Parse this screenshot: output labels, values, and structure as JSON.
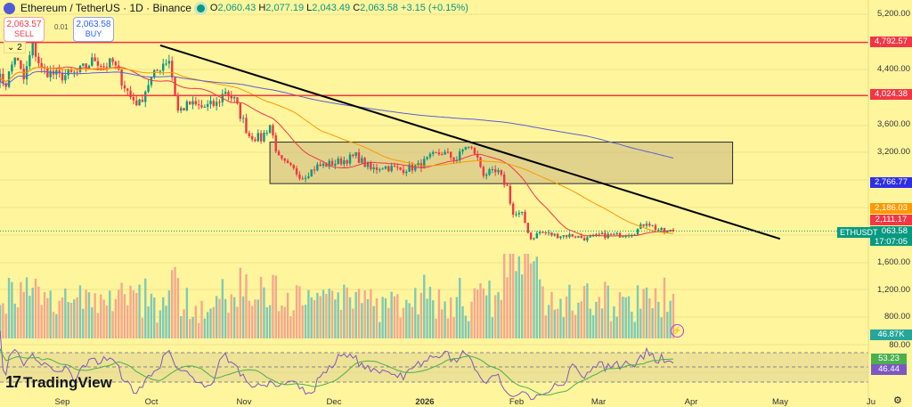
{
  "header": {
    "title": "Ethereum / TetherUS · 1D · Binance",
    "o_label": "O",
    "o": "2,060.43",
    "h_label": "H",
    "h": "2,077.19",
    "l_label": "L",
    "l": "2,043.49",
    "c_label": "C",
    "c": "2,063.58",
    "change": "+3.15 (+0.15%)"
  },
  "trade": {
    "sell_price": "2,063.57",
    "sell_label": "SELL",
    "spread": "0.01",
    "buy_price": "2,063.58",
    "buy_label": "BUY"
  },
  "indicators_collapse": "2",
  "branding": "TradingView",
  "symbol_tag": "ETHUSDT",
  "price_labels": {
    "h1": "4,792.57",
    "h2": "4,024.38",
    "ma_blue": "2,766.77",
    "ma_orange": "2,186.03",
    "ma_red": "2,111.17",
    "last": "2,063.58",
    "countdown": "17:07:05",
    "volume": "46.87K",
    "rsi_ma": "53.23",
    "rsi": "46.44"
  },
  "colors": {
    "up": "#089981",
    "down": "#f23645",
    "background": "#fff59d",
    "ma_orange": "#ff9800",
    "ma_red": "#f23645",
    "ma_blue": "#5b5fd6",
    "rsi": "#7e57c2",
    "rsi_ma": "#4caf50",
    "hline": "#f23645",
    "trendline": "#000000",
    "zone": "#c9b77e"
  },
  "chart_data": {
    "type": "candlestick",
    "price_axis_ticks": [
      "5,200.00",
      "4,400.00",
      "3,600.00",
      "3,200.00",
      "1,600.00"
    ],
    "volume_axis_ticks": [
      "1,200.00",
      "800.00"
    ],
    "rsi_axis_ticks": [
      "80.00"
    ],
    "x_tick_labels": [
      "Sep",
      "Oct",
      "Nov",
      "Dec",
      "2026",
      "Feb",
      "Mar",
      "Apr",
      "May",
      "Ju"
    ],
    "approx_closes": [
      {
        "date": "2025-08-10",
        "close": 4300
      },
      {
        "date": "2025-08-13",
        "close": 4200
      },
      {
        "date": "2025-08-16",
        "close": 4600
      },
      {
        "date": "2025-08-19",
        "close": 4250
      },
      {
        "date": "2025-08-22",
        "close": 4750
      },
      {
        "date": "2025-08-25",
        "close": 4400
      },
      {
        "date": "2025-08-31",
        "close": 4300
      },
      {
        "date": "2025-09-06",
        "close": 4350
      },
      {
        "date": "2025-09-12",
        "close": 4550
      },
      {
        "date": "2025-09-15",
        "close": 4450
      },
      {
        "date": "2025-09-18",
        "close": 4500
      },
      {
        "date": "2025-09-24",
        "close": 4000
      },
      {
        "date": "2025-09-27",
        "close": 3900
      },
      {
        "date": "2025-09-30",
        "close": 4200
      },
      {
        "date": "2025-10-05",
        "close": 4500
      },
      {
        "date": "2025-10-07",
        "close": 4550
      },
      {
        "date": "2025-10-10",
        "close": 3800
      },
      {
        "date": "2025-10-14",
        "close": 3900
      },
      {
        "date": "2025-10-18",
        "close": 3850
      },
      {
        "date": "2025-10-23",
        "close": 3900
      },
      {
        "date": "2025-10-26",
        "close": 4100
      },
      {
        "date": "2025-10-29",
        "close": 3950
      },
      {
        "date": "2025-11-03",
        "close": 3450
      },
      {
        "date": "2025-11-07",
        "close": 3400
      },
      {
        "date": "2025-11-10",
        "close": 3600
      },
      {
        "date": "2025-11-13",
        "close": 3100
      },
      {
        "date": "2025-11-16",
        "close": 3000
      },
      {
        "date": "2025-11-21",
        "close": 2850
      },
      {
        "date": "2025-11-26",
        "close": 3000
      },
      {
        "date": "2025-12-02",
        "close": 3050
      },
      {
        "date": "2025-12-06",
        "close": 3100
      },
      {
        "date": "2025-12-09",
        "close": 3150
      },
      {
        "date": "2025-12-14",
        "close": 2950
      },
      {
        "date": "2025-12-18",
        "close": 3000
      },
      {
        "date": "2025-12-24",
        "close": 2950
      },
      {
        "date": "2025-12-30",
        "close": 3000
      },
      {
        "date": "2026-01-04",
        "close": 3150
      },
      {
        "date": "2026-01-07",
        "close": 3200
      },
      {
        "date": "2026-01-12",
        "close": 3100
      },
      {
        "date": "2026-01-15",
        "close": 3300
      },
      {
        "date": "2026-01-18",
        "close": 3200
      },
      {
        "date": "2026-01-21",
        "close": 2900
      },
      {
        "date": "2026-01-26",
        "close": 2900
      },
      {
        "date": "2026-01-29",
        "close": 2700
      },
      {
        "date": "2026-01-31",
        "close": 2300
      },
      {
        "date": "2026-02-03",
        "close": 2300
      },
      {
        "date": "2026-02-06",
        "close": 1950
      },
      {
        "date": "2026-02-09",
        "close": 2050
      },
      {
        "date": "2026-02-14",
        "close": 2000
      },
      {
        "date": "2026-02-20",
        "close": 2000
      },
      {
        "date": "2026-02-25",
        "close": 1950
      },
      {
        "date": "2026-03-01",
        "close": 2000
      },
      {
        "date": "2026-03-07",
        "close": 2000
      },
      {
        "date": "2026-03-13",
        "close": 2050
      },
      {
        "date": "2026-03-17",
        "close": 2200
      },
      {
        "date": "2026-03-20",
        "close": 2100
      },
      {
        "date": "2026-03-23",
        "close": 2050
      },
      {
        "date": "2026-03-26",
        "close": 2063.58
      }
    ],
    "horizontal_lines": [
      4792.57,
      4024.38
    ],
    "zone": {
      "from": "2025-11-10",
      "to": "2026-04-15",
      "top": 3350,
      "bottom": 2750
    },
    "trendline": {
      "from": {
        "date": "2025-10-04",
        "price": 4750
      },
      "to": {
        "date": "2026-05-01",
        "price": 1950
      }
    }
  }
}
